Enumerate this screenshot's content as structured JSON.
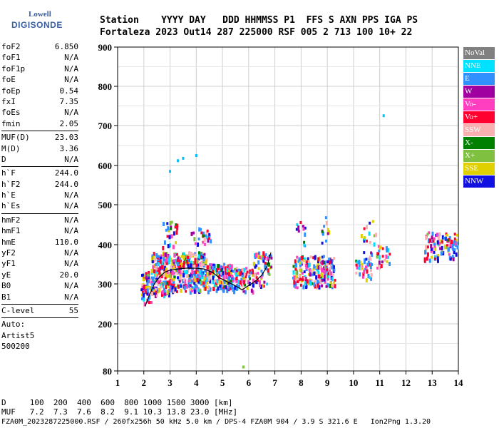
{
  "logo": {
    "line1": "Lowell",
    "line2": "DIGISONDE"
  },
  "header": {
    "line1": "Station    YYYY DAY   DDD HHMMSS P1  FFS S AXN PPS IGA PS",
    "line2": "Fortaleza 2023 Out14 287 225000 RSF 005 2 713 100 10+ 22"
  },
  "params_a": [
    {
      "label": "foF2",
      "value": "6.850"
    },
    {
      "label": "foF1",
      "value": "N/A"
    },
    {
      "label": "foF1p",
      "value": "N/A"
    },
    {
      "label": "foE",
      "value": "N/A"
    },
    {
      "label": "foEp",
      "value": "0.54"
    },
    {
      "label": "fxI",
      "value": "7.35"
    },
    {
      "label": "foEs",
      "value": "N/A"
    },
    {
      "label": "fmin",
      "value": "2.05"
    }
  ],
  "params_b": [
    {
      "label": "MUF(D)",
      "value": "23.03"
    },
    {
      "label": "M(D)",
      "value": "3.36"
    },
    {
      "label": "D",
      "value": "N/A"
    }
  ],
  "params_c": [
    {
      "label": "h`F",
      "value": "244.0"
    },
    {
      "label": "h`F2",
      "value": "244.0"
    },
    {
      "label": "h`E",
      "value": "N/A"
    },
    {
      "label": "h`Es",
      "value": "N/A"
    }
  ],
  "params_d": [
    {
      "label": "hmF2",
      "value": "N/A"
    },
    {
      "label": "hmF1",
      "value": "N/A"
    },
    {
      "label": "hmE",
      "value": "110.0"
    },
    {
      "label": "yF2",
      "value": "N/A"
    },
    {
      "label": "yF1",
      "value": "N/A"
    },
    {
      "label": "yE",
      "value": "20.0"
    },
    {
      "label": "B0",
      "value": "N/A"
    },
    {
      "label": "B1",
      "value": "N/A"
    }
  ],
  "c_level": {
    "label": "C-level",
    "value": "55"
  },
  "auto": {
    "line1": "Auto:",
    "line2": "Artist5",
    "line3": "500200"
  },
  "legend": [
    {
      "label": "NoVal",
      "color": "#808080"
    },
    {
      "label": "NNE",
      "color": "#00e0ff"
    },
    {
      "label": "E",
      "color": "#3090ff"
    },
    {
      "label": "W",
      "color": "#a000a0"
    },
    {
      "label": "Vo-",
      "color": "#ff3fc0"
    },
    {
      "label": "Vo+",
      "color": "#ff0030"
    },
    {
      "label": "SSW",
      "color": "#f8b0b0"
    },
    {
      "label": "X-",
      "color": "#008000"
    },
    {
      "label": "X+",
      "color": "#80c040"
    },
    {
      "label": "SSE",
      "color": "#e0d000"
    },
    {
      "label": "NNW",
      "color": "#1010e0"
    }
  ],
  "footer": {
    "line1": "D     100  200  400  600  800 1000 1500 3000 [km]",
    "line2": "MUF   7.2  7.3  7.6  8.2  9.1 10.3 13.8 23.0 [MHz]",
    "line3": "FZA0M_2023287225000.RSF / 260fx256h 50 kHz 5.0 km / DPS-4 FZA0M 904 / 3.9 S 321.6 E   Ion2Png 1.3.20"
  },
  "chart_data": {
    "type": "scatter",
    "x_ticks": [
      "1",
      "2",
      "3",
      "4",
      "5",
      "6",
      "7",
      "8",
      "9",
      "10",
      "11",
      "12",
      "13",
      "14"
    ],
    "y_ticks": [
      "80",
      "200",
      "300",
      "400",
      "500",
      "600",
      "700",
      "800",
      "900"
    ],
    "xlim": [
      1,
      14
    ],
    "ylim": [
      80,
      900
    ],
    "grid": true,
    "trace_curve": {
      "x": [
        2.05,
        2.2,
        2.4,
        2.6,
        2.8,
        3.0,
        3.3,
        3.6,
        4.0,
        4.3,
        4.6,
        4.9,
        5.2,
        5.5,
        5.75,
        5.9,
        6.1,
        6.3,
        6.5,
        6.7,
        6.85
      ],
      "y": [
        244,
        270,
        300,
        318,
        330,
        335,
        338,
        340,
        340,
        338,
        330,
        315,
        305,
        295,
        285,
        292,
        300,
        310,
        322,
        345,
        380
      ]
    },
    "echo_clusters": [
      {
        "x": [
          1.9,
          2.3
        ],
        "y": [
          250,
          330
        ],
        "n": 60
      },
      {
        "x": [
          2.3,
          3.2
        ],
        "y": [
          270,
          380
        ],
        "n": 220
      },
      {
        "x": [
          3.2,
          4.4
        ],
        "y": [
          280,
          380
        ],
        "n": 260
      },
      {
        "x": [
          4.4,
          5.4
        ],
        "y": [
          280,
          350
        ],
        "n": 160
      },
      {
        "x": [
          5.4,
          6.2
        ],
        "y": [
          280,
          340
        ],
        "n": 70
      },
      {
        "x": [
          6.2,
          6.9
        ],
        "y": [
          290,
          380
        ],
        "n": 60
      },
      {
        "x": [
          7.7,
          9.3
        ],
        "y": [
          290,
          370
        ],
        "n": 200
      },
      {
        "x": [
          10.1,
          10.7
        ],
        "y": [
          310,
          380
        ],
        "n": 45
      },
      {
        "x": [
          10.9,
          11.4
        ],
        "y": [
          340,
          400
        ],
        "n": 25
      },
      {
        "x": [
          12.7,
          14.0
        ],
        "y": [
          360,
          430
        ],
        "n": 110
      },
      {
        "x": [
          2.7,
          3.3
        ],
        "y": [
          390,
          460
        ],
        "n": 25
      },
      {
        "x": [
          3.8,
          4.6
        ],
        "y": [
          400,
          440
        ],
        "n": 25
      },
      {
        "x": [
          7.8,
          8.2
        ],
        "y": [
          390,
          460
        ],
        "n": 12
      },
      {
        "x": [
          8.8,
          9.1
        ],
        "y": [
          390,
          470
        ],
        "n": 12
      },
      {
        "x": [
          10.3,
          10.9
        ],
        "y": [
          400,
          460
        ],
        "n": 14
      }
    ],
    "isolated_points": [
      {
        "x": 3.0,
        "y": 585
      },
      {
        "x": 3.3,
        "y": 612
      },
      {
        "x": 3.5,
        "y": 618
      },
      {
        "x": 4.0,
        "y": 625
      },
      {
        "x": 11.15,
        "y": 725
      },
      {
        "x": 5.8,
        "y": 90
      }
    ]
  }
}
